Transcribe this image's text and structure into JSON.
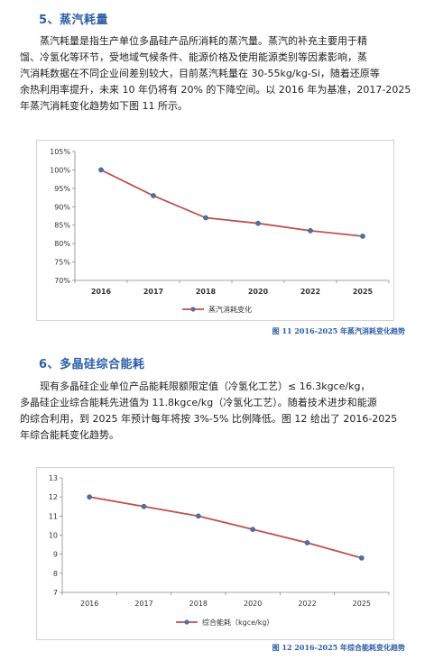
{
  "section1": {
    "title": "5、蒸汽耗量",
    "lines": [
      "蒸汽耗量是指生产单位多晶硅产品所消耗的蒸汽量。蒸汽的补充主要用于精",
      "馏、冷氢化等环节，受地域气候条件、能源价格及使用能源类别等因素影响，蒸",
      "汽消耗数据在不同企业间差别较大，目前蒸汽耗量在 30-55kg/kg-Si，随着还原等",
      "余热利用率提升，未来 10 年仍将有 20% 的下降空间。以 2016 年为基准，2017-2025",
      "年蒸汽消耗变化趋势如下图 11 所示。"
    ]
  },
  "figure1": {
    "caption": "图 11 2016-2025 年蒸汽消耗变化趋势"
  },
  "section2": {
    "title": "6、多晶硅综合能耗",
    "lines": [
      "现有多晶硅企业单位产品能耗限额限定值（冷氢化工艺）≤ 16.3kgce/kg，",
      "多晶硅企业综合能耗先进值为 11.8kgce/kg（冷氢化工艺）。随着技术进步和能源",
      "的综合利用，到 2025 年预计每年将按 3%-5% 比例降低。图 12 给出了 2016-2025",
      "年综合能耗变化趋势。"
    ]
  },
  "figure2": {
    "caption": "图 12 2016-2025 年综合能耗变化趋势"
  },
  "chart_data": [
    {
      "type": "line",
      "categories": [
        "2016",
        "2017",
        "2018",
        "2020",
        "2022",
        "2025"
      ],
      "series": [
        {
          "name": "蒸汽消耗变化",
          "values": [
            100,
            93,
            87,
            85.5,
            83.5,
            82
          ],
          "color": "#c0504d",
          "marker_color": "#4f6fa8"
        }
      ],
      "ylim": [
        70,
        105
      ],
      "yticks": [
        70,
        75,
        80,
        85,
        90,
        95,
        100,
        105
      ],
      "ytick_labels": [
        "70%",
        "75%",
        "80%",
        "85%",
        "90%",
        "95%",
        "100%",
        "105%"
      ],
      "grid": false,
      "legend_position": "bottom",
      "bold_xticks": true
    },
    {
      "type": "line",
      "categories": [
        "2016",
        "2017",
        "2018",
        "2020",
        "2022",
        "2025"
      ],
      "series": [
        {
          "name": "综合能耗（kgce/kg）",
          "values": [
            12,
            11.5,
            11,
            10.3,
            9.6,
            8.8
          ],
          "color": "#c0504d",
          "marker_color": "#4f6fa8"
        }
      ],
      "ylim": [
        7,
        13
      ],
      "yticks": [
        7,
        8,
        9,
        10,
        11,
        12,
        13
      ],
      "ytick_labels": [
        "7",
        "8",
        "9",
        "10",
        "11",
        "12",
        "13"
      ],
      "grid": false,
      "legend_position": "bottom",
      "bold_xticks": false
    }
  ]
}
